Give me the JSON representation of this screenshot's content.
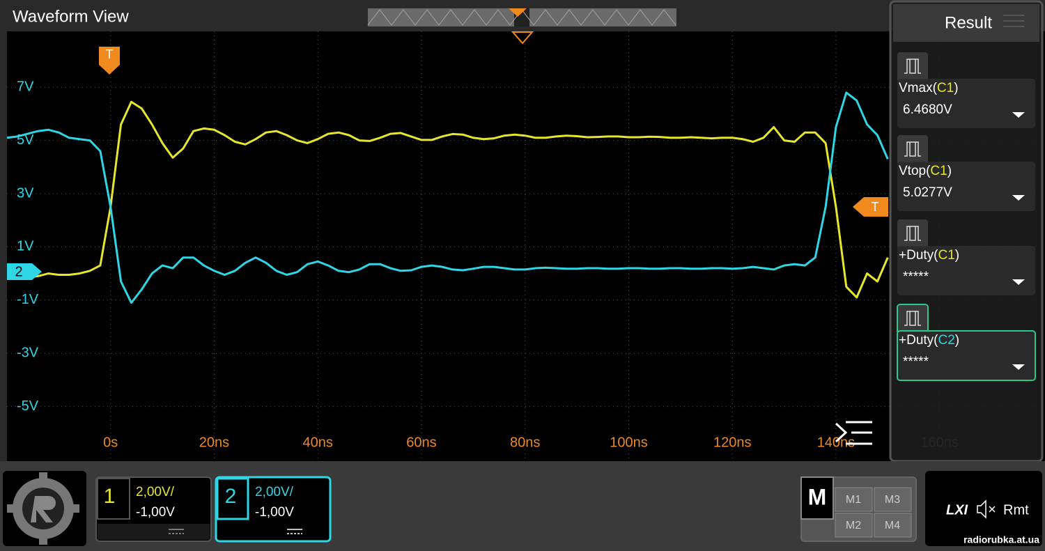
{
  "header": {
    "title": "Waveform View"
  },
  "chart_data": {
    "type": "line",
    "grid": true,
    "x": [
      -20,
      -18,
      -16,
      -14,
      -12,
      -10,
      -8,
      -6,
      -4,
      -2,
      0,
      2,
      4,
      6,
      8,
      10,
      12,
      14,
      16,
      18,
      20,
      22,
      24,
      26,
      28,
      30,
      32,
      34,
      36,
      38,
      40,
      42,
      44,
      46,
      48,
      50,
      52,
      54,
      56,
      58,
      60,
      62,
      64,
      66,
      68,
      70,
      72,
      74,
      76,
      78,
      80,
      82,
      84,
      86,
      88,
      90,
      92,
      94,
      96,
      98,
      100,
      102,
      104,
      106,
      108,
      110,
      112,
      114,
      116,
      118,
      120,
      122,
      124,
      126,
      128,
      130,
      132,
      134,
      136,
      138,
      140,
      142,
      144,
      146,
      148,
      150
    ],
    "series": [
      {
        "name": "1",
        "color": "#e6e62a",
        "values": [
          -0.05,
          -0.1,
          -0.15,
          -0.1,
          0.0,
          -0.05,
          -0.05,
          0.0,
          0.1,
          0.3,
          2.5,
          5.6,
          6.45,
          6.2,
          5.6,
          4.9,
          4.35,
          4.7,
          5.35,
          5.45,
          5.4,
          5.2,
          4.95,
          4.85,
          5.05,
          5.3,
          5.35,
          5.2,
          5.0,
          4.9,
          5.05,
          5.25,
          5.3,
          5.2,
          5.0,
          4.98,
          5.1,
          5.25,
          5.28,
          5.15,
          5.02,
          5.02,
          5.15,
          5.24,
          5.22,
          5.1,
          5.05,
          5.08,
          5.18,
          5.22,
          5.18,
          5.1,
          5.1,
          5.15,
          5.18,
          5.16,
          5.12,
          5.13,
          5.15,
          5.15,
          5.12,
          5.12,
          5.14,
          5.13,
          5.1,
          5.1,
          5.12,
          5.1,
          5.08,
          5.1,
          5.1,
          5.05,
          4.95,
          5.1,
          5.5,
          5.0,
          4.95,
          5.3,
          5.3,
          4.9,
          2.5,
          -0.5,
          -0.9,
          0.0,
          -0.3,
          0.6
        ]
      },
      {
        "name": "2",
        "color": "#2ed6e6",
        "values": [
          5.1,
          5.15,
          5.25,
          5.35,
          5.4,
          5.3,
          5.1,
          5.05,
          5.0,
          4.6,
          2.5,
          -0.3,
          -1.1,
          -0.6,
          0.0,
          0.3,
          0.2,
          0.6,
          0.6,
          0.3,
          0.1,
          -0.05,
          0.1,
          0.4,
          0.6,
          0.4,
          0.1,
          -0.05,
          0.05,
          0.35,
          0.45,
          0.3,
          0.1,
          0.05,
          0.15,
          0.35,
          0.35,
          0.2,
          0.1,
          0.12,
          0.25,
          0.3,
          0.25,
          0.15,
          0.12,
          0.18,
          0.25,
          0.25,
          0.2,
          0.15,
          0.15,
          0.2,
          0.22,
          0.2,
          0.18,
          0.18,
          0.2,
          0.2,
          0.18,
          0.18,
          0.2,
          0.2,
          0.18,
          0.18,
          0.2,
          0.2,
          0.18,
          0.18,
          0.2,
          0.2,
          0.18,
          0.2,
          0.25,
          0.2,
          0.15,
          0.3,
          0.35,
          0.3,
          0.6,
          2.5,
          5.5,
          6.8,
          6.5,
          5.6,
          5.2,
          4.3
        ]
      }
    ],
    "xlim": [
      -20,
      179
    ],
    "ylim": [
      -7,
      9.1
    ],
    "xticks": [
      {
        "value": 0,
        "label": "0s"
      },
      {
        "value": 20,
        "label": "20ns"
      },
      {
        "value": 40,
        "label": "40ns"
      },
      {
        "value": 60,
        "label": "60ns"
      },
      {
        "value": 80,
        "label": "80ns"
      },
      {
        "value": 100,
        "label": "100ns"
      },
      {
        "value": 120,
        "label": "120ns"
      },
      {
        "value": 140,
        "label": "140ns"
      },
      {
        "value": 160,
        "label": "160ns"
      }
    ],
    "yticks": [
      {
        "value": 7,
        "label": "7V"
      },
      {
        "value": 5,
        "label": "5V"
      },
      {
        "value": 3,
        "label": "3V"
      },
      {
        "value": 1,
        "label": "1V"
      },
      {
        "value": -1,
        "label": "-1V"
      },
      {
        "value": -3,
        "label": "-3V"
      },
      {
        "value": -5,
        "label": "-5V"
      }
    ]
  },
  "markers": {
    "trigger_top": "T",
    "trigger_level": "T",
    "channel_ref": "2"
  },
  "results": {
    "title": "Result",
    "items": [
      {
        "label_parts": [
          "Vmax(",
          "C1",
          ")"
        ],
        "value": "6.4680V"
      },
      {
        "label_parts": [
          "Vtop(",
          "C1",
          ")"
        ],
        "value": "5.0277V"
      },
      {
        "label_parts": [
          "+Duty(",
          "C1",
          ")"
        ],
        "value": "*****"
      },
      {
        "label_parts": [
          "+Duty(",
          "C2",
          ")"
        ],
        "value": "*****"
      }
    ]
  },
  "channels": [
    {
      "id": "1",
      "scale": "2,00V/",
      "offset": "-1,00V"
    },
    {
      "id": "2",
      "scale": "2,00V/",
      "offset": "-1,00V"
    }
  ],
  "math": {
    "label": "M",
    "slots": [
      "M1",
      "M3",
      "M2",
      "M4"
    ]
  },
  "status": {
    "lxi": "LXI",
    "remote": "Rmt"
  },
  "watermark": "radiorubka.at.ua"
}
